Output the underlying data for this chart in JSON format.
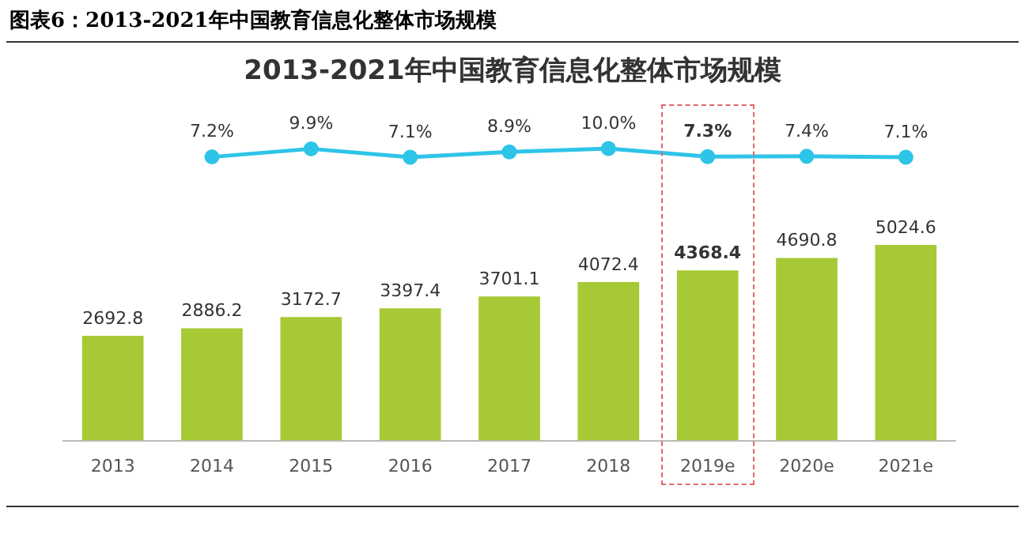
{
  "chart_data": [
    {
      "type": "line",
      "title": "2013-2021年中国教育信息化整体市场规模",
      "subtitle": "图表6：2013-2021年中国教育信息化整体市场规模",
      "categories": [
        null,
        null,
        null,
        null,
        null,
        null,
        null,
        null,
        null
      ],
      "values": [
        null,
        7.2,
        9.9,
        7.1,
        8.9,
        10.0,
        7.3,
        7.4,
        7.1
      ],
      "value_labels": [
        null,
        "7.2%",
        "9.9%",
        "7.1%",
        "8.9%",
        "10.0%",
        "7.3%",
        "7.4%",
        "7.1%"
      ],
      "color": "#2ec4e8",
      "tick_labels": false,
      "grid": false,
      "legend": false,
      "marker": "circle",
      "line_style": "solid"
    },
    {
      "type": "bar",
      "categories": [
        "2013",
        "2014",
        "2015",
        "2016",
        "2017",
        "2018",
        "2019e",
        "2020e",
        "2021e"
      ],
      "values": [
        2692.8,
        2886.2,
        3172.7,
        3397.4,
        3701.1,
        4072.4,
        4368.4,
        4690.8,
        5024.6
      ],
      "value_labels": [
        "2692.8",
        "2886.2",
        "3172.7",
        "3397.4",
        "3701.1",
        "4072.4",
        "4368.4",
        "4690.8",
        "5024.6"
      ],
      "color": "#a6c935",
      "ylim": [
        0,
        5024.6
      ],
      "tick_labels": "x",
      "grid": false,
      "legend": false
    }
  ]
}
